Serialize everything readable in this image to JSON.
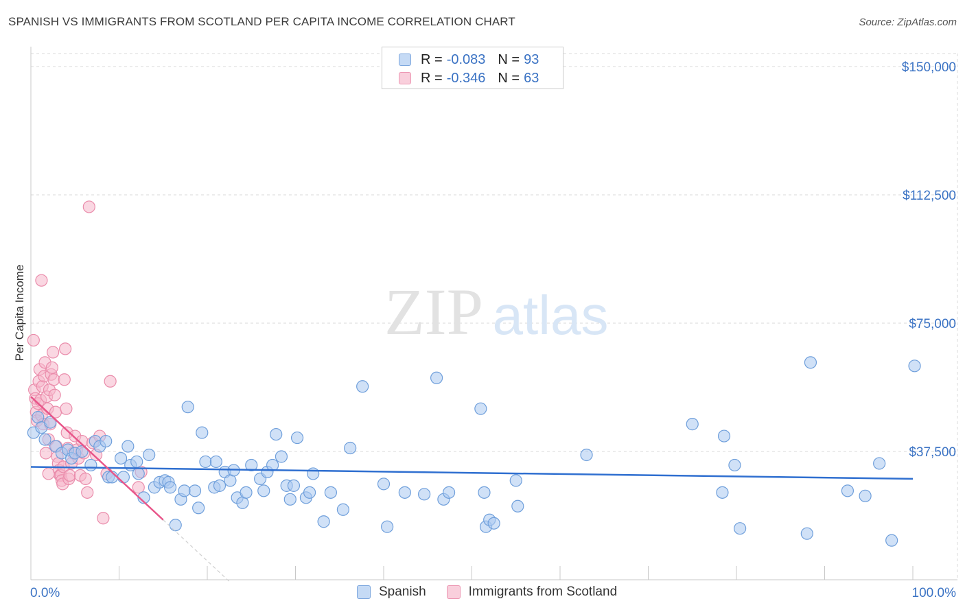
{
  "title": "SPANISH VS IMMIGRANTS FROM SCOTLAND PER CAPITA INCOME CORRELATION CHART",
  "source": "Source: ZipAtlas.com",
  "watermark": {
    "zip": "ZIP",
    "atlas": "atlas"
  },
  "legend_top": {
    "rows": [
      {
        "r_label": "R =",
        "r_value": "-0.083",
        "n_label": "N =",
        "n_value": "93"
      },
      {
        "r_label": "R =",
        "r_value": "-0.346",
        "n_label": "N =",
        "n_value": "63"
      }
    ]
  },
  "colors": {
    "blue_fill": "#a9c8f0",
    "blue_stroke": "#6f9fdb",
    "blue_line": "#2f6fd0",
    "pink_fill": "#f6b7cb",
    "pink_stroke": "#ea8cab",
    "pink_line": "#e8568a",
    "grid": "#d8d8d8",
    "axis_text": "#3b73c4"
  },
  "chart_data": {
    "type": "scatter",
    "title": "SPANISH VS IMMIGRANTS FROM SCOTLAND PER CAPITA INCOME CORRELATION CHART",
    "xlabel": "",
    "ylabel": "Per Capita Income",
    "xlim": [
      0,
      100
    ],
    "ylim": [
      0,
      157000
    ],
    "x_tick_labels": [
      "0.0%",
      "100.0%"
    ],
    "y_ticks": [
      37500,
      75000,
      112500,
      150000
    ],
    "y_tick_labels": [
      "$37,500",
      "$75,000",
      "$112,500",
      "$150,000"
    ],
    "series": [
      {
        "name": "Spanish",
        "r": -0.083,
        "n": 93,
        "trend": {
          "x": [
            0,
            100
          ],
          "y": [
            33000,
            29500
          ]
        },
        "points": [
          [
            0.3,
            43000
          ],
          [
            0.8,
            47500
          ],
          [
            1.2,
            44500
          ],
          [
            1.6,
            41000
          ],
          [
            2.2,
            46000
          ],
          [
            2.8,
            39000
          ],
          [
            3.5,
            37000
          ],
          [
            4.2,
            38000
          ],
          [
            4.6,
            35500
          ],
          [
            5.0,
            37000
          ],
          [
            5.8,
            37500
          ],
          [
            6.8,
            33500
          ],
          [
            7.3,
            40500
          ],
          [
            7.8,
            39000
          ],
          [
            8.5,
            40500
          ],
          [
            8.8,
            30000
          ],
          [
            9.2,
            30000
          ],
          [
            10.2,
            35500
          ],
          [
            10.5,
            30000
          ],
          [
            11.0,
            39000
          ],
          [
            11.3,
            33500
          ],
          [
            12.0,
            34500
          ],
          [
            12.2,
            31000
          ],
          [
            12.8,
            24000
          ],
          [
            13.4,
            36500
          ],
          [
            14.0,
            27000
          ],
          [
            14.6,
            28500
          ],
          [
            15.2,
            29000
          ],
          [
            15.6,
            28500
          ],
          [
            15.8,
            27000
          ],
          [
            16.4,
            16000
          ],
          [
            17.0,
            23500
          ],
          [
            17.4,
            26000
          ],
          [
            17.8,
            50500
          ],
          [
            18.6,
            26000
          ],
          [
            19.0,
            21000
          ],
          [
            19.4,
            43000
          ],
          [
            19.8,
            34500
          ],
          [
            20.8,
            27000
          ],
          [
            21.0,
            34500
          ],
          [
            21.4,
            27500
          ],
          [
            22.0,
            31500
          ],
          [
            22.6,
            29000
          ],
          [
            23.0,
            32000
          ],
          [
            23.4,
            24000
          ],
          [
            24.0,
            22500
          ],
          [
            24.4,
            25500
          ],
          [
            25.0,
            33500
          ],
          [
            26.0,
            29500
          ],
          [
            26.4,
            26000
          ],
          [
            26.8,
            31500
          ],
          [
            27.4,
            33500
          ],
          [
            27.8,
            42500
          ],
          [
            28.4,
            36000
          ],
          [
            29.0,
            27500
          ],
          [
            29.4,
            23500
          ],
          [
            29.8,
            27500
          ],
          [
            30.2,
            41500
          ],
          [
            31.2,
            24000
          ],
          [
            31.6,
            25500
          ],
          [
            32.0,
            31000
          ],
          [
            33.2,
            17000
          ],
          [
            34.0,
            25500
          ],
          [
            35.4,
            20500
          ],
          [
            36.2,
            38500
          ],
          [
            37.6,
            56500
          ],
          [
            40.0,
            28000
          ],
          [
            40.4,
            15500
          ],
          [
            42.4,
            25500
          ],
          [
            44.6,
            25000
          ],
          [
            46.0,
            59000
          ],
          [
            46.8,
            23500
          ],
          [
            47.4,
            25500
          ],
          [
            51.0,
            50000
          ],
          [
            51.6,
            15500
          ],
          [
            52.0,
            17500
          ],
          [
            51.4,
            25500
          ],
          [
            55.0,
            29000
          ],
          [
            55.2,
            21500
          ],
          [
            63.0,
            36500
          ],
          [
            75.0,
            45500
          ],
          [
            78.4,
            25500
          ],
          [
            78.6,
            42000
          ],
          [
            80.4,
            15000
          ],
          [
            79.8,
            33500
          ],
          [
            88.0,
            13500
          ],
          [
            88.4,
            63500
          ],
          [
            92.6,
            26000
          ],
          [
            94.6,
            24500
          ],
          [
            96.2,
            34000
          ],
          [
            97.6,
            11500
          ],
          [
            100.2,
            62500
          ],
          [
            52.5,
            16500
          ]
        ]
      },
      {
        "name": "Immigrants from Scotland",
        "r": -0.346,
        "n": 63,
        "trend": {
          "x": [
            0,
            15
          ],
          "y": [
            53500,
            17500
          ]
        },
        "trend_dashed": {
          "x": [
            15,
            22.5
          ],
          "y": [
            17500,
            -500
          ]
        },
        "points": [
          [
            0.3,
            70000
          ],
          [
            0.4,
            55500
          ],
          [
            0.5,
            53000
          ],
          [
            0.6,
            49000
          ],
          [
            0.7,
            46500
          ],
          [
            0.8,
            51500
          ],
          [
            0.9,
            58000
          ],
          [
            1.0,
            61500
          ],
          [
            1.1,
            52500
          ],
          [
            1.2,
            48000
          ],
          [
            1.3,
            56500
          ],
          [
            1.4,
            45500
          ],
          [
            1.5,
            59500
          ],
          [
            1.6,
            63500
          ],
          [
            1.7,
            37000
          ],
          [
            1.8,
            53500
          ],
          [
            1.9,
            50000
          ],
          [
            2.0,
            41000
          ],
          [
            2.1,
            55500
          ],
          [
            2.2,
            45500
          ],
          [
            2.3,
            60000
          ],
          [
            2.4,
            62000
          ],
          [
            2.5,
            66500
          ],
          [
            2.6,
            58500
          ],
          [
            2.7,
            54000
          ],
          [
            2.8,
            49000
          ],
          [
            2.9,
            39000
          ],
          [
            3.0,
            36000
          ],
          [
            3.1,
            34000
          ],
          [
            3.2,
            32000
          ],
          [
            3.3,
            30500
          ],
          [
            3.4,
            30500
          ],
          [
            3.5,
            29000
          ],
          [
            3.6,
            28000
          ],
          [
            3.7,
            33000
          ],
          [
            3.8,
            58500
          ],
          [
            3.9,
            67500
          ],
          [
            4.0,
            50000
          ],
          [
            4.1,
            43000
          ],
          [
            4.2,
            38500
          ],
          [
            4.3,
            29500
          ],
          [
            4.4,
            30500
          ],
          [
            4.6,
            34000
          ],
          [
            4.8,
            37000
          ],
          [
            5.0,
            42000
          ],
          [
            5.2,
            38000
          ],
          [
            5.4,
            35500
          ],
          [
            5.6,
            30500
          ],
          [
            5.8,
            40500
          ],
          [
            6.0,
            37000
          ],
          [
            6.2,
            29500
          ],
          [
            6.4,
            25500
          ],
          [
            6.6,
            109000
          ],
          [
            7.0,
            40000
          ],
          [
            7.4,
            36500
          ],
          [
            7.8,
            42000
          ],
          [
            8.2,
            18000
          ],
          [
            8.6,
            31000
          ],
          [
            9.0,
            58000
          ],
          [
            1.2,
            87500
          ],
          [
            2.0,
            31000
          ],
          [
            12.2,
            27000
          ],
          [
            12.5,
            31500
          ]
        ]
      }
    ]
  },
  "bottom_legend": [
    {
      "label": "Spanish"
    },
    {
      "label": "Immigrants from Scotland"
    }
  ]
}
